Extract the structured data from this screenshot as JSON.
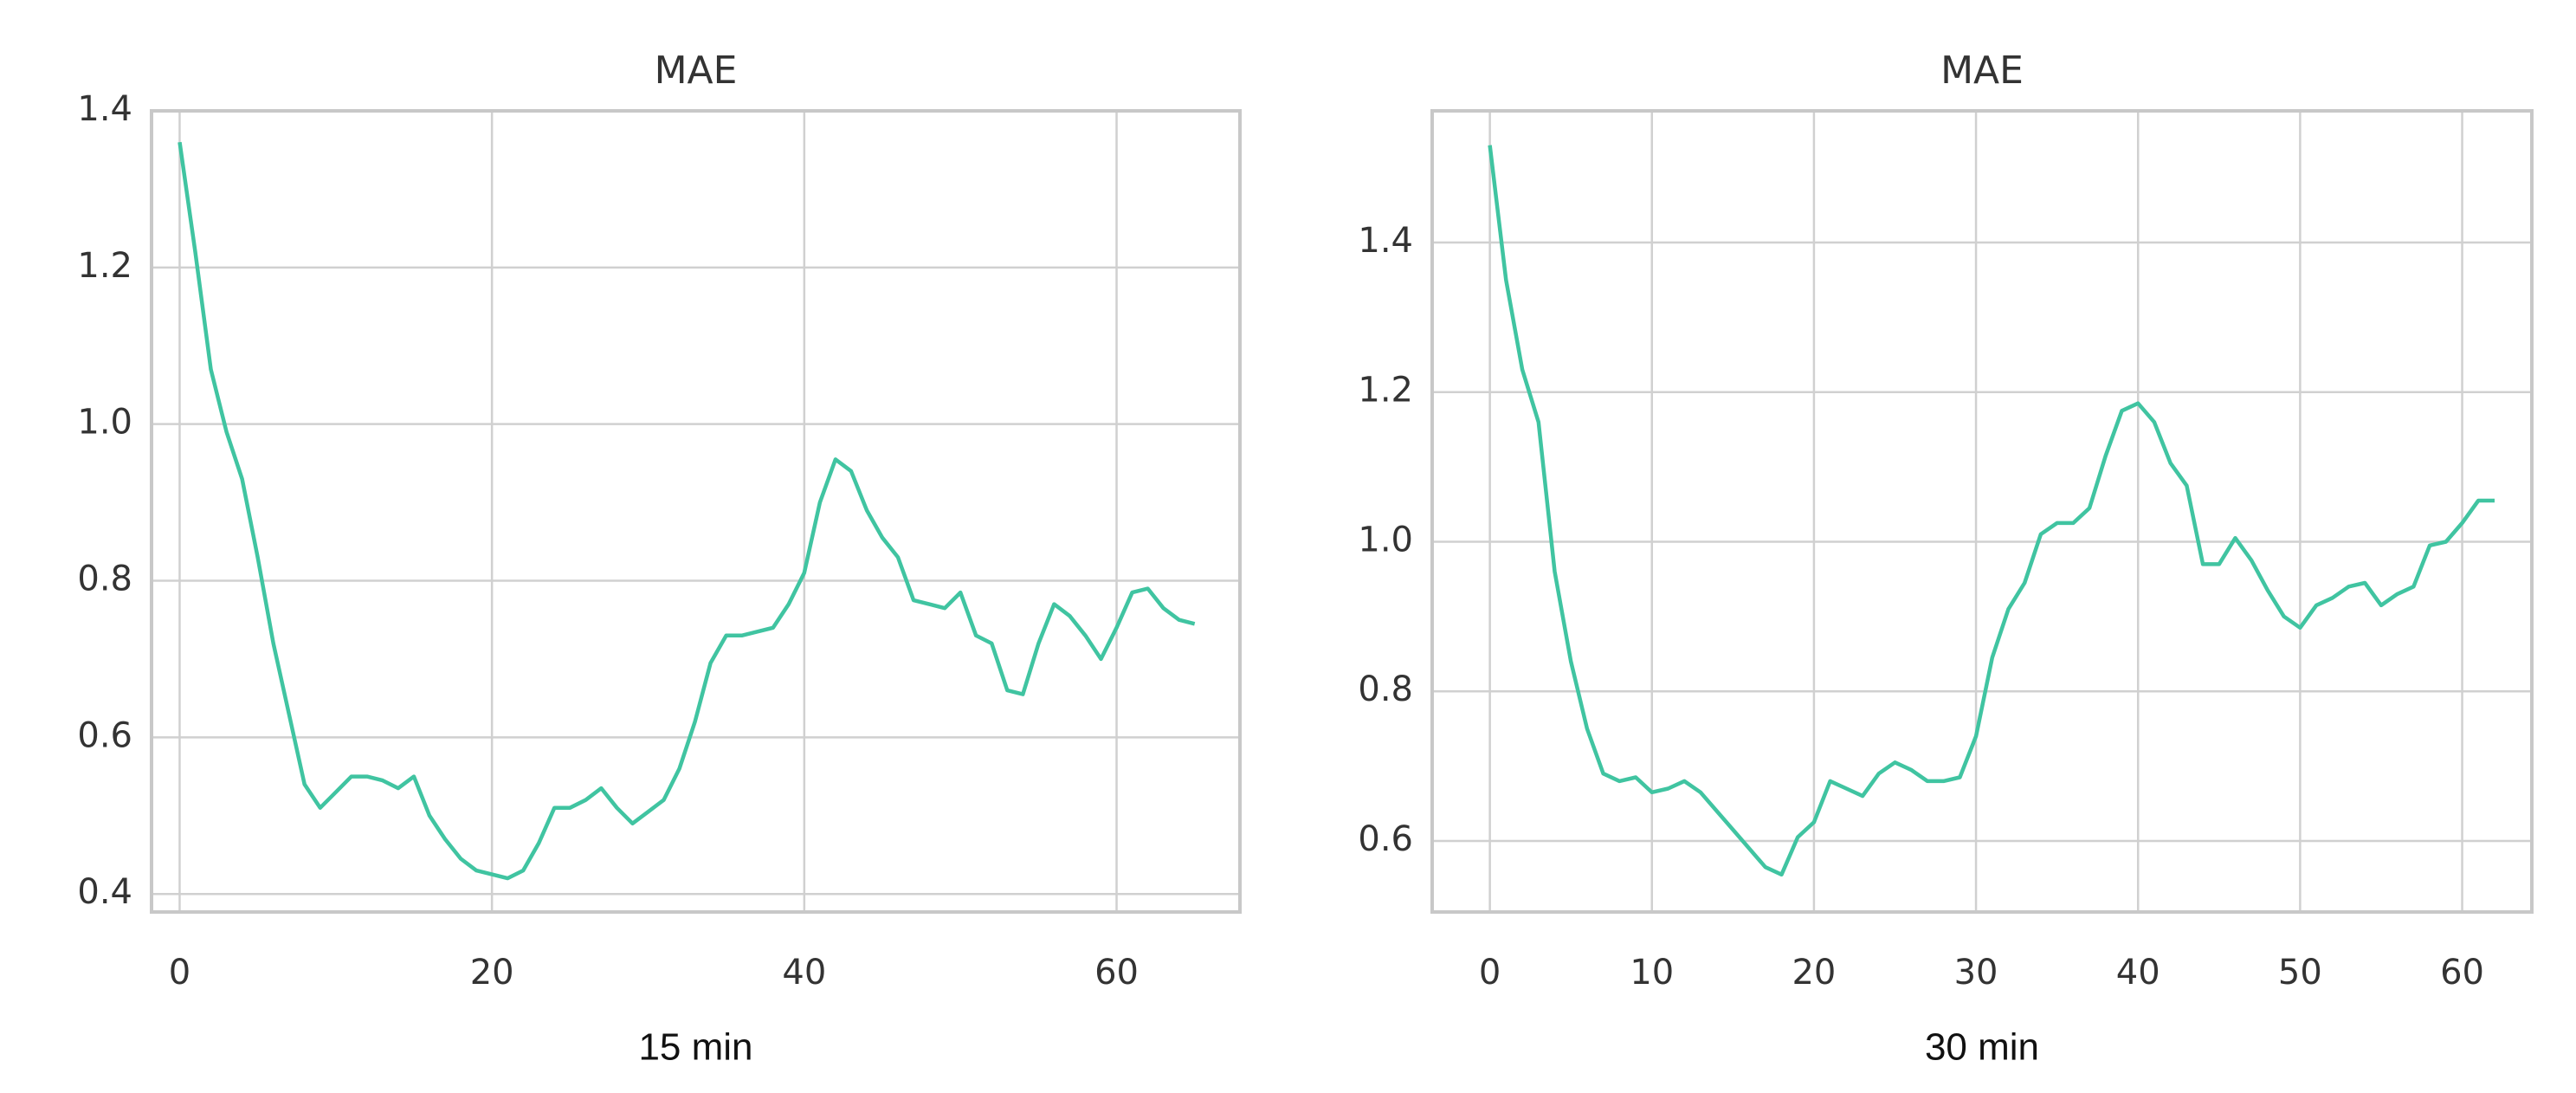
{
  "chart_data": [
    {
      "type": "line",
      "title": "MAE",
      "xlabel": "15 min",
      "x": [
        0,
        1,
        2,
        3,
        4,
        5,
        6,
        7,
        8,
        9,
        10,
        11,
        12,
        13,
        14,
        15,
        16,
        17,
        18,
        19,
        20,
        21,
        22,
        23,
        24,
        25,
        26,
        27,
        28,
        29,
        30,
        31,
        32,
        33,
        34,
        35,
        36,
        37,
        38,
        39,
        40,
        41,
        42,
        43,
        44,
        45,
        46,
        47,
        48,
        49,
        50,
        51,
        52,
        53,
        54,
        55,
        56,
        57,
        58,
        59,
        60,
        61,
        62,
        63,
        64,
        65
      ],
      "series": [
        {
          "color": "#40c4a1",
          "values": [
            1.36,
            1.22,
            1.07,
            0.99,
            0.93,
            0.83,
            0.72,
            0.63,
            0.54,
            0.51,
            0.53,
            0.55,
            0.55,
            0.545,
            0.535,
            0.55,
            0.5,
            0.47,
            0.445,
            0.43,
            0.425,
            0.42,
            0.43,
            0.465,
            0.51,
            0.51,
            0.52,
            0.535,
            0.51,
            0.49,
            0.505,
            0.52,
            0.56,
            0.62,
            0.695,
            0.73,
            0.73,
            0.735,
            0.74,
            0.77,
            0.81,
            0.9,
            0.955,
            0.94,
            0.89,
            0.855,
            0.83,
            0.775,
            0.77,
            0.765,
            0.785,
            0.73,
            0.72,
            0.66,
            0.655,
            0.72,
            0.77,
            0.755,
            0.73,
            0.7,
            0.74,
            0.785,
            0.79,
            0.765,
            0.75,
            0.745
          ]
        }
      ],
      "xlim": [
        -1.8,
        67.9
      ],
      "xticks": [
        0,
        20,
        40,
        60
      ],
      "ylim": [
        0.377,
        1.4
      ],
      "yticks": [
        0.4,
        0.6,
        0.8,
        {
          "value": 1.0,
          "label": "1.0"
        },
        1.2,
        1.4
      ],
      "grid": true
    },
    {
      "type": "line",
      "title": "MAE",
      "xlabel": "30 min",
      "x": [
        0,
        1,
        2,
        3,
        4,
        5,
        6,
        7,
        8,
        9,
        10,
        11,
        12,
        13,
        14,
        15,
        16,
        17,
        18,
        19,
        20,
        21,
        22,
        23,
        24,
        25,
        26,
        27,
        28,
        29,
        30,
        31,
        32,
        33,
        34,
        35,
        36,
        37,
        38,
        39,
        40,
        41,
        42,
        43,
        44,
        45,
        46,
        47,
        48,
        49,
        50,
        51,
        52,
        53,
        54,
        55,
        56,
        57,
        58,
        59,
        60,
        61,
        62
      ],
      "series": [
        {
          "color": "#40c4a1",
          "values": [
            1.53,
            1.35,
            1.23,
            1.16,
            0.96,
            0.84,
            0.75,
            0.69,
            0.68,
            0.685,
            0.665,
            0.67,
            0.68,
            0.665,
            0.64,
            0.615,
            0.59,
            0.565,
            0.555,
            0.605,
            0.625,
            0.68,
            0.67,
            0.66,
            0.69,
            0.705,
            0.695,
            0.68,
            0.68,
            0.685,
            0.74,
            0.845,
            0.91,
            0.945,
            1.01,
            1.025,
            1.025,
            1.045,
            1.115,
            1.175,
            1.185,
            1.16,
            1.105,
            1.075,
            0.97,
            0.97,
            1.005,
            0.975,
            0.935,
            0.9,
            0.885,
            0.915,
            0.925,
            0.94,
            0.945,
            0.915,
            0.93,
            0.94,
            0.995,
            1.0,
            1.025,
            1.055,
            1.055
          ]
        }
      ],
      "xlim": [
        -3.56,
        64.3
      ],
      "xticks": [
        0,
        10,
        20,
        30,
        40,
        50,
        60
      ],
      "ylim": [
        0.505,
        1.576
      ],
      "yticks": [
        0.6,
        0.8,
        {
          "value": 1.0,
          "label": "1.0"
        },
        1.2,
        1.4
      ],
      "grid": true
    }
  ]
}
